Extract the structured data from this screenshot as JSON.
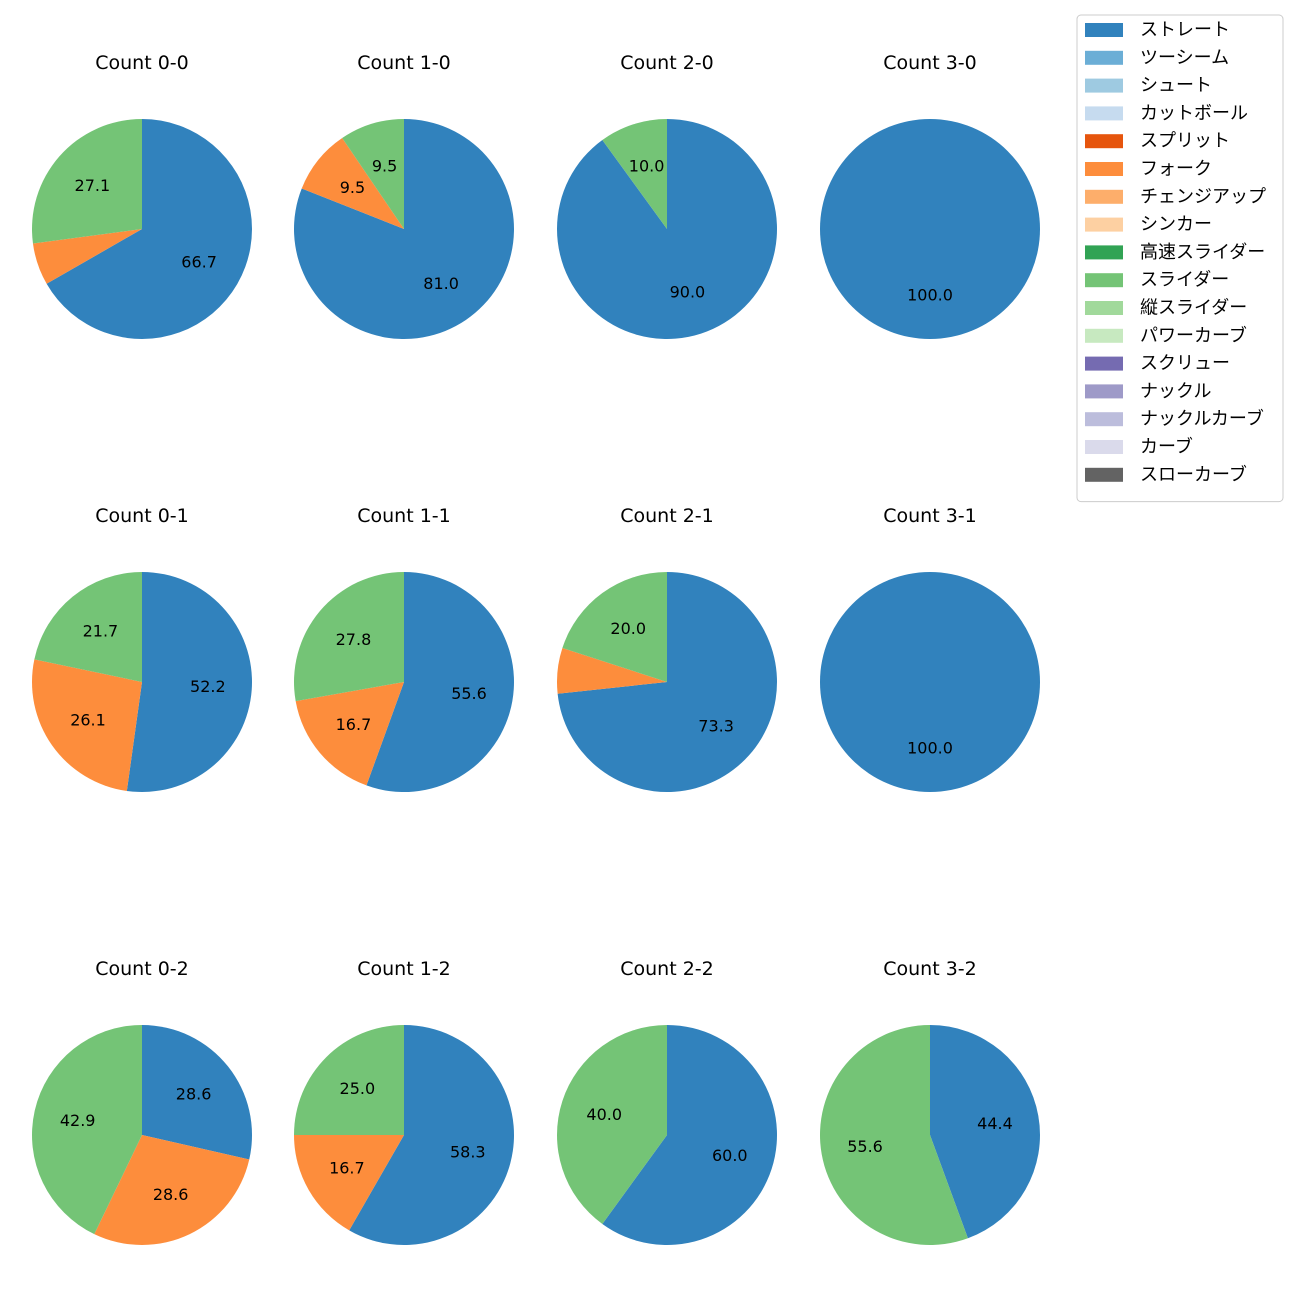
{
  "chart_data": {
    "type": "pie",
    "legend": {
      "placement": "top-right",
      "entries": [
        {
          "label": "ストレート",
          "color": "#3182bd"
        },
        {
          "label": "ツーシーム",
          "color": "#6baed6"
        },
        {
          "label": "シュート",
          "color": "#9ecae1"
        },
        {
          "label": "カットボール",
          "color": "#c6dbef"
        },
        {
          "label": "スプリット",
          "color": "#e6550d"
        },
        {
          "label": "フォーク",
          "color": "#fd8d3c"
        },
        {
          "label": "チェンジアップ",
          "color": "#fdae6b"
        },
        {
          "label": "シンカー",
          "color": "#fdd0a2"
        },
        {
          "label": "高速スライダー",
          "color": "#31a354"
        },
        {
          "label": "スライダー",
          "color": "#74c476"
        },
        {
          "label": "縦スライダー",
          "color": "#a1d99b"
        },
        {
          "label": "パワーカーブ",
          "color": "#c7e9c0"
        },
        {
          "label": "スクリュー",
          "color": "#756bb1"
        },
        {
          "label": "ナックル",
          "color": "#9e9ac8"
        },
        {
          "label": "ナックルカーブ",
          "color": "#bcbddc"
        },
        {
          "label": "カーブ",
          "color": "#dadaeb"
        },
        {
          "label": "スローカーブ",
          "color": "#636363"
        }
      ]
    },
    "pies": [
      {
        "title": "Count 0-0",
        "slices": [
          {
            "pitch": "ストレート",
            "value": 66.7,
            "label": "66.7"
          },
          {
            "pitch": "フォーク",
            "value": 6.2,
            "label": ""
          },
          {
            "pitch": "スライダー",
            "value": 27.1,
            "label": "27.1"
          }
        ]
      },
      {
        "title": "Count 1-0",
        "slices": [
          {
            "pitch": "ストレート",
            "value": 81.0,
            "label": "81.0"
          },
          {
            "pitch": "フォーク",
            "value": 9.5,
            "label": "9.5"
          },
          {
            "pitch": "スライダー",
            "value": 9.5,
            "label": "9.5"
          }
        ]
      },
      {
        "title": "Count 2-0",
        "slices": [
          {
            "pitch": "ストレート",
            "value": 90.0,
            "label": "90.0"
          },
          {
            "pitch": "スライダー",
            "value": 10.0,
            "label": "10.0"
          }
        ]
      },
      {
        "title": "Count 3-0",
        "slices": [
          {
            "pitch": "ストレート",
            "value": 100.0,
            "label": "100.0"
          }
        ]
      },
      {
        "title": "Count 0-1",
        "slices": [
          {
            "pitch": "ストレート",
            "value": 52.2,
            "label": "52.2"
          },
          {
            "pitch": "フォーク",
            "value": 26.1,
            "label": "26.1"
          },
          {
            "pitch": "スライダー",
            "value": 21.7,
            "label": "21.7"
          }
        ]
      },
      {
        "title": "Count 1-1",
        "slices": [
          {
            "pitch": "ストレート",
            "value": 55.6,
            "label": "55.6"
          },
          {
            "pitch": "フォーク",
            "value": 16.7,
            "label": "16.7"
          },
          {
            "pitch": "スライダー",
            "value": 27.8,
            "label": "27.8"
          }
        ]
      },
      {
        "title": "Count 2-1",
        "slices": [
          {
            "pitch": "ストレート",
            "value": 73.3,
            "label": "73.3"
          },
          {
            "pitch": "フォーク",
            "value": 6.7,
            "label": ""
          },
          {
            "pitch": "スライダー",
            "value": 20.0,
            "label": "20.0"
          }
        ]
      },
      {
        "title": "Count 3-1",
        "slices": [
          {
            "pitch": "ストレート",
            "value": 100.0,
            "label": "100.0"
          }
        ]
      },
      {
        "title": "Count 0-2",
        "slices": [
          {
            "pitch": "ストレート",
            "value": 28.6,
            "label": "28.6"
          },
          {
            "pitch": "フォーク",
            "value": 28.6,
            "label": "28.6"
          },
          {
            "pitch": "スライダー",
            "value": 42.9,
            "label": "42.9"
          }
        ]
      },
      {
        "title": "Count 1-2",
        "slices": [
          {
            "pitch": "ストレート",
            "value": 58.3,
            "label": "58.3"
          },
          {
            "pitch": "フォーク",
            "value": 16.7,
            "label": "16.7"
          },
          {
            "pitch": "スライダー",
            "value": 25.0,
            "label": "25.0"
          }
        ]
      },
      {
        "title": "Count 2-2",
        "slices": [
          {
            "pitch": "ストレート",
            "value": 60.0,
            "label": "60.0"
          },
          {
            "pitch": "スライダー",
            "value": 40.0,
            "label": "40.0"
          }
        ]
      },
      {
        "title": "Count 3-2",
        "slices": [
          {
            "pitch": "ストレート",
            "value": 44.4,
            "label": "44.4"
          },
          {
            "pitch": "スライダー",
            "value": 55.6,
            "label": "55.6"
          }
        ]
      }
    ]
  }
}
